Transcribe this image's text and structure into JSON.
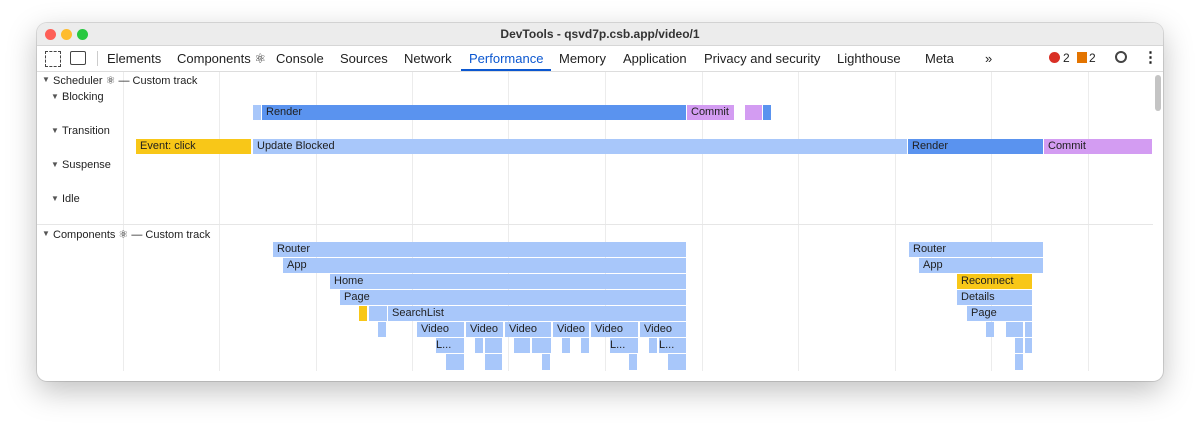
{
  "window": {
    "title": "DevTools - qsvd7p.csb.app/video/1"
  },
  "toolbar": {
    "tabs": [
      "Elements",
      "Components ⚛",
      "Console",
      "Sources",
      "Network",
      "Performance",
      "Memory",
      "Application",
      "Privacy and security",
      "Lighthouse",
      "Meta"
    ],
    "more": "»",
    "errors": "2",
    "warnings": "2"
  },
  "scheduler": {
    "title": "Scheduler ⚛ — Custom track",
    "lanes": [
      "Blocking",
      "Transition",
      "Suspense",
      "Idle"
    ],
    "blocks": [
      "Render",
      "Commit",
      "Event: click",
      "Update Blocked",
      "Render",
      "Commit"
    ]
  },
  "components": {
    "title": "Components ⚛ — Custom track",
    "blocks": [
      "Router",
      "App",
      "Home",
      "Page",
      "SearchList",
      "Video",
      "Video",
      "Video",
      "Video",
      "Video",
      "Video",
      "L...",
      "L...",
      "L...",
      "Router",
      "App",
      "Reconnect",
      "Details",
      "Page"
    ]
  }
}
